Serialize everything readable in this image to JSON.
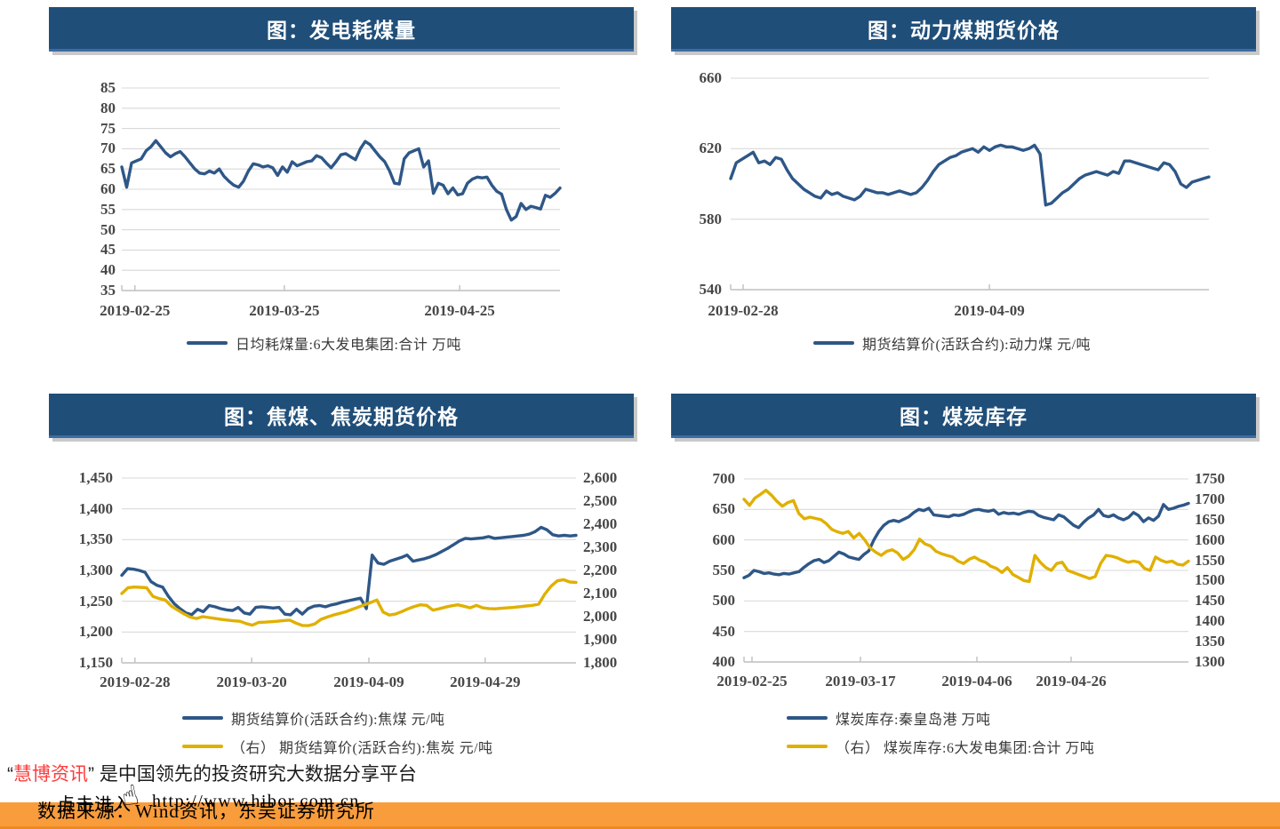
{
  "footer": {
    "quote_open": "“",
    "brand": "慧博资讯",
    "quote_close": "”",
    "tagline": "是中国领先的投资研究大数据分享平台",
    "click_text": "点击进入",
    "url": "http://www.hibor.com.cn",
    "hand_icon": "☝",
    "source_text": "数据来源：Wind资讯，东吴证券研究所",
    "colors": {
      "brand": "#fb3e3e",
      "bar": "#f99c3c"
    }
  },
  "chart_data": [
    {
      "type": "line",
      "title": "图：发电耗煤量",
      "header_color": "#1F4E79",
      "grid": "horizontal",
      "y_left": {
        "min": 35,
        "max": 85,
        "labels": [
          "85",
          "80",
          "75",
          "70",
          "65",
          "60",
          "55",
          "50",
          "45",
          "40",
          "35"
        ]
      },
      "x_ticks": [
        {
          "label": "2019-02-25",
          "f": 0.03
        },
        {
          "label": "2019-03-25",
          "f": 0.371
        },
        {
          "label": "2019-04-25",
          "f": 0.771
        }
      ],
      "series": [
        {
          "name": "日均耗煤量:6大发电集团:合计  万吨",
          "color": "#2E5787",
          "axis": "left",
          "values": [
            65.5,
            60.5,
            66.5,
            67,
            67.5,
            69.5,
            70.5,
            72,
            70.5,
            69,
            68,
            68.8,
            69.3,
            68,
            66.5,
            65,
            64,
            63.8,
            64.5,
            64,
            65,
            63.2,
            62,
            61,
            60.5,
            62,
            64.5,
            66.3,
            66,
            65.5,
            65.8,
            65.3,
            63.4,
            65.5,
            64.2,
            66.8,
            65.8,
            66.3,
            66.8,
            67,
            68.3,
            67.8,
            66.5,
            65.3,
            66.8,
            68.5,
            68.8,
            68,
            67.3,
            70,
            71.8,
            71,
            69.5,
            68,
            66.8,
            64.5,
            61.5,
            61.3,
            67.5,
            69,
            69.5,
            70,
            65.5,
            67,
            59,
            61.5,
            61,
            58.9,
            60.3,
            58.6,
            58.9,
            61.5,
            62.5,
            63,
            62.8,
            63,
            61,
            59.5,
            58.8,
            55,
            52.4,
            53.3,
            56.5,
            55,
            55.8,
            55.5,
            55.1,
            58.5,
            58,
            59,
            60.3
          ]
        }
      ]
    },
    {
      "type": "line",
      "title": "图：动力煤期货价格",
      "header_color": "#1F4E79",
      "grid": "horizontal",
      "y_left": {
        "min": 540,
        "max": 660,
        "labels": [
          "660",
          "620",
          "580",
          "540"
        ]
      },
      "x_ticks": [
        {
          "label": "2019-02-28",
          "f": 0.026
        },
        {
          "label": "2019-04-09",
          "f": 0.541
        }
      ],
      "series": [
        {
          "name": "期货结算价(活跃合约):动力煤  元/吨",
          "color": "#2E5787",
          "axis": "left",
          "values": [
            603,
            612,
            614,
            616,
            618,
            612,
            613,
            611,
            615,
            614,
            608,
            603,
            600,
            597,
            595,
            593,
            592,
            596,
            594,
            595,
            593,
            592,
            591,
            593,
            597,
            596,
            595,
            595,
            594,
            595,
            596,
            595,
            594,
            595,
            598,
            602,
            607,
            611,
            613,
            615,
            616,
            618,
            619,
            620,
            618,
            621,
            619,
            621,
            622,
            621,
            621,
            620,
            619,
            620,
            622,
            617,
            588,
            589,
            592,
            595,
            597,
            600,
            603,
            605,
            606,
            607,
            606,
            605,
            607,
            606,
            613,
            613,
            612,
            611,
            610,
            609,
            608,
            612,
            611,
            607,
            600,
            598,
            601,
            602,
            603,
            604
          ]
        }
      ]
    },
    {
      "type": "line",
      "title": "图：焦煤、焦炭期货价格",
      "header_color": "#1F4E79",
      "grid": "horizontal",
      "y_left": {
        "min": 1150,
        "max": 1450,
        "labels": [
          "1,450",
          "1,400",
          "1,350",
          "1,300",
          "1,250",
          "1,200",
          "1,150"
        ]
      },
      "y_right": {
        "min": 1800,
        "max": 2600,
        "labels": [
          "2,600",
          "2,500",
          "2,400",
          "2,300",
          "2,200",
          "2,100",
          "2,000",
          "1,900",
          "1,800"
        ]
      },
      "x_ticks": [
        {
          "label": "2019-02-28",
          "f": 0.029
        },
        {
          "label": "2019-03-20",
          "f": 0.286
        },
        {
          "label": "2019-04-09",
          "f": 0.544
        },
        {
          "label": "2019-04-29",
          "f": 0.8
        }
      ],
      "series": [
        {
          "name": "期货结算价(活跃合约):焦煤  元/吨",
          "color": "#2E5787",
          "axis": "left",
          "values": [
            1292,
            1303,
            1302,
            1300,
            1297,
            1282,
            1276,
            1273,
            1258,
            1246,
            1238,
            1231,
            1228,
            1237,
            1233,
            1243,
            1241,
            1238,
            1236,
            1235,
            1240,
            1231,
            1229,
            1240,
            1241,
            1240,
            1239,
            1240,
            1229,
            1228,
            1237,
            1229,
            1238,
            1242,
            1243,
            1241,
            1244,
            1246,
            1249,
            1251,
            1253,
            1255,
            1238,
            1325,
            1312,
            1310,
            1315,
            1318,
            1321,
            1325,
            1315,
            1317,
            1319,
            1322,
            1326,
            1331,
            1336,
            1342,
            1348,
            1352,
            1351,
            1352,
            1353,
            1355,
            1352,
            1353,
            1354,
            1355,
            1356,
            1357,
            1359,
            1363,
            1370,
            1366,
            1358,
            1356,
            1357,
            1356,
            1357
          ]
        },
        {
          "name": "（右）  期货结算价(活跃合约):焦炭  元/吨",
          "color": "#E0B000",
          "axis": "right",
          "values": [
            2100,
            2125,
            2128,
            2127,
            2125,
            2088,
            2078,
            2072,
            2045,
            2028,
            2012,
            1998,
            1992,
            2000,
            1996,
            1992,
            1988,
            1985,
            1982,
            1980,
            1970,
            1963,
            1975,
            1976,
            1978,
            1980,
            1983,
            1985,
            1972,
            1962,
            1961,
            1968,
            1988,
            1998,
            2007,
            2014,
            2021,
            2031,
            2041,
            2051,
            2061,
            2072,
            2020,
            2007,
            2011,
            2022,
            2034,
            2044,
            2051,
            2049,
            2028,
            2034,
            2041,
            2047,
            2051,
            2045,
            2038,
            2049,
            2038,
            2035,
            2034,
            2036,
            2038,
            2040,
            2043,
            2046,
            2049,
            2054,
            2098,
            2132,
            2155,
            2160,
            2150,
            2148
          ]
        }
      ]
    },
    {
      "type": "line",
      "title": "图：煤炭库存",
      "header_color": "#1F4E79",
      "grid": "horizontal",
      "y_left": {
        "min": 400,
        "max": 700,
        "labels": [
          "700",
          "650",
          "600",
          "550",
          "500",
          "450",
          "400"
        ]
      },
      "y_right": {
        "min": 1300,
        "max": 1750,
        "labels": [
          "1750",
          "1700",
          "1650",
          "1600",
          "1550",
          "1500",
          "1450",
          "1400",
          "1350",
          "1300"
        ]
      },
      "x_ticks": [
        {
          "label": "2019-02-25",
          "f": 0.018
        },
        {
          "label": "2019-03-17",
          "f": 0.262
        },
        {
          "label": "2019-04-06",
          "f": 0.524
        },
        {
          "label": "2019-04-26",
          "f": 0.736
        }
      ],
      "series": [
        {
          "name": "煤炭库存:秦皇岛港  万吨",
          "color": "#2E5787",
          "axis": "left",
          "values": [
            538,
            542,
            550,
            548,
            545,
            546,
            544,
            543,
            545,
            544,
            546,
            548,
            555,
            561,
            566,
            568,
            563,
            566,
            573,
            580,
            577,
            572,
            570,
            568,
            576,
            582,
            600,
            614,
            624,
            630,
            632,
            630,
            634,
            638,
            645,
            650,
            648,
            652,
            641,
            640,
            639,
            638,
            641,
            640,
            642,
            646,
            649,
            650,
            648,
            647,
            649,
            642,
            645,
            643,
            644,
            642,
            645,
            647,
            646,
            640,
            637,
            635,
            633,
            641,
            638,
            631,
            624,
            620,
            629,
            636,
            641,
            650,
            640,
            638,
            641,
            636,
            633,
            637,
            645,
            640,
            630,
            636,
            632,
            639,
            658,
            650,
            652,
            655,
            657,
            660
          ]
        },
        {
          "name": "（右）  煤炭库存:6大发电集团:合计  万吨",
          "color": "#E0B000",
          "axis": "right",
          "values": [
            1700,
            1685,
            1703,
            1712,
            1722,
            1710,
            1695,
            1683,
            1692,
            1697,
            1665,
            1652,
            1656,
            1653,
            1650,
            1640,
            1626,
            1620,
            1616,
            1621,
            1605,
            1616,
            1600,
            1580,
            1570,
            1562,
            1572,
            1576,
            1568,
            1552,
            1560,
            1576,
            1602,
            1590,
            1585,
            1572,
            1566,
            1562,
            1558,
            1548,
            1542,
            1552,
            1558,
            1550,
            1545,
            1535,
            1530,
            1520,
            1532,
            1515,
            1508,
            1500,
            1498,
            1562,
            1545,
            1532,
            1525,
            1542,
            1545,
            1525,
            1520,
            1515,
            1510,
            1505,
            1510,
            1542,
            1562,
            1560,
            1556,
            1550,
            1545,
            1548,
            1545,
            1530,
            1525,
            1558,
            1550,
            1545,
            1548,
            1540,
            1538,
            1548
          ]
        }
      ]
    }
  ]
}
